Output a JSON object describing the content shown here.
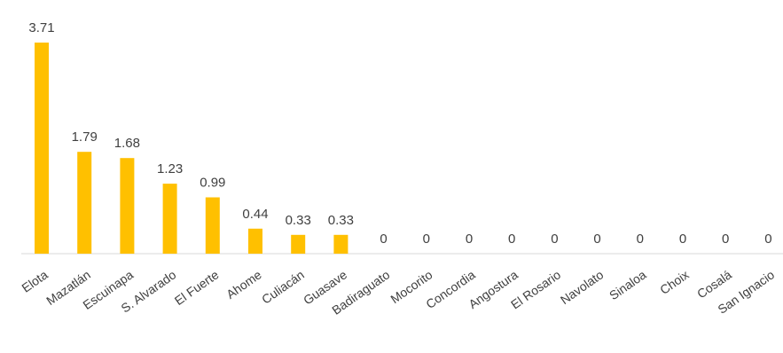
{
  "chart_data": {
    "type": "bar",
    "categories": [
      "Elota",
      "Mazatlán",
      "Escuinapa",
      "S. Alvarado",
      "El Fuerte",
      "Ahome",
      "Culiacán",
      "Guasave",
      "Badiraguato",
      "Mocorito",
      "Concordia",
      "Angostura",
      "El Rosario",
      "Navolato",
      "Sinaloa",
      "Choix",
      "Cosalá",
      "San Ignacio"
    ],
    "values": [
      3.71,
      1.79,
      1.68,
      1.23,
      0.99,
      0.44,
      0.33,
      0.33,
      0,
      0,
      0,
      0,
      0,
      0,
      0,
      0,
      0,
      0
    ],
    "value_labels": [
      "3.71",
      "1.79",
      "1.68",
      "1.23",
      "0.99",
      "0.44",
      "0.33",
      "0.33",
      "0",
      "0",
      "0",
      "0",
      "0",
      "0",
      "0",
      "0",
      "0",
      "0"
    ],
    "title": "",
    "xlabel": "",
    "ylabel": "",
    "ylim": [
      0,
      3.71
    ],
    "grid": false,
    "legend": "none",
    "bar_color": "#FFC000",
    "axis_color": "#D9D9D9",
    "label_color": "#404040"
  }
}
